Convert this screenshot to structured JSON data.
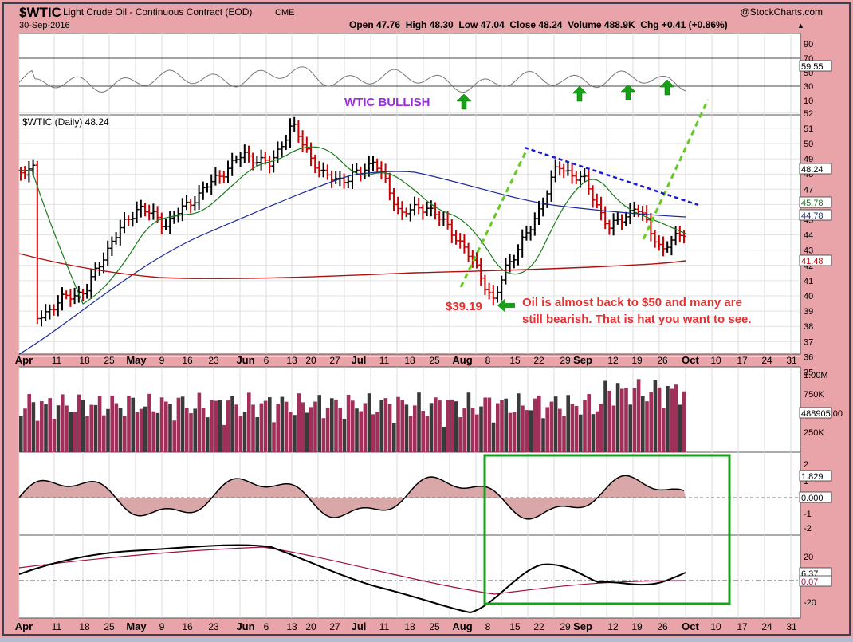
{
  "header": {
    "symbol": "$WTIC",
    "name": "Light Crude Oil - Continuous Contract (EOD)",
    "exchange": "CME",
    "date": "30-Sep-2016",
    "brand": "@StockCharts.com",
    "ohlc_line": "Open 47.76  High 48.30  Low 47.04  Close 48.24  Volume 488.9K  Chg +0.41 (+0.86%)",
    "up_arrow": "▲"
  },
  "annotations": {
    "bullish": "WTIC BULLISH",
    "low_price": "$39.19",
    "comment_line1": "Oil is almost back to $50 and many are",
    "comment_line2": "still bearish. That is hat you want to see."
  },
  "price_panel": {
    "legend": "$WTIC (Daily) 48.24",
    "y_ticks": [
      "52",
      "51",
      "50",
      "49",
      "48",
      "47",
      "46",
      "45",
      "44",
      "43",
      "42",
      "41",
      "40",
      "39",
      "38",
      "37",
      "36",
      "35"
    ],
    "value_tags": [
      "48.24",
      "45.78",
      "44.78",
      "41.48"
    ]
  },
  "rsi_panel": {
    "y_ticks": [
      "90",
      "70",
      "50",
      "30",
      "10"
    ],
    "value_tag": "59.55"
  },
  "volume_panel": {
    "y_ticks": [
      "1.00M",
      "750K",
      "250K"
    ],
    "value_tag": "488905.00"
  },
  "macd_hist_panel": {
    "y_ticks": [
      "2",
      "1",
      "0",
      "-1",
      "-2"
    ],
    "value_tags": [
      "1.829",
      "0.000"
    ]
  },
  "osc_panel": {
    "y_ticks": [
      "20",
      "-20"
    ],
    "value_tags": [
      "6.37",
      "0.07"
    ]
  },
  "x_axis": [
    "Apr",
    "11",
    "18",
    "25",
    "May",
    "9",
    "16",
    "23",
    "Jun",
    "6",
    "13",
    "20",
    "27",
    "Jul",
    "11",
    "18",
    "25",
    "Aug",
    "8",
    "15",
    "22",
    "29",
    "Sep",
    "12",
    "19",
    "26",
    "Oct",
    "10",
    "17",
    "24",
    "31"
  ],
  "colors": {
    "up_bar": "#000000",
    "down_bar": "#cc0000",
    "ma_short": "#1b7a1b",
    "ma_mid": "#1a2a9a",
    "ma_long": "#b01010",
    "trend_green": "#66cc22",
    "trend_blue": "#1a1ad0",
    "annotation_green": "#18a018",
    "highlight_box": "#18a018",
    "bullish_text": "#9a2ae0",
    "comment_text": "#e83030"
  },
  "chart_data": {
    "type": "bar",
    "title": "$WTIC Light Crude Oil - Continuous Contract (EOD)",
    "x_range": [
      "2016-04-01",
      "2016-09-30"
    ],
    "ylim": [
      35,
      52
    ],
    "price_points": [
      [
        "2016-04-01",
        38.3
      ],
      [
        "2016-04-08",
        39.7
      ],
      [
        "2016-04-15",
        40.4
      ],
      [
        "2016-04-22",
        43.7
      ],
      [
        "2016-04-29",
        45.9
      ],
      [
        "2016-05-06",
        44.7
      ],
      [
        "2016-05-13",
        46.2
      ],
      [
        "2016-05-20",
        47.8
      ],
      [
        "2016-05-27",
        49.3
      ],
      [
        "2016-06-03",
        48.6
      ],
      [
        "2016-06-09",
        51.2
      ],
      [
        "2016-06-17",
        47.9
      ],
      [
        "2016-06-24",
        47.6
      ],
      [
        "2016-07-01",
        48.9
      ],
      [
        "2016-07-08",
        45.4
      ],
      [
        "2016-07-15",
        45.9
      ],
      [
        "2016-07-22",
        44.2
      ],
      [
        "2016-07-29",
        41.6
      ],
      [
        "2016-08-02",
        39.5
      ],
      [
        "2016-08-05",
        41.8
      ],
      [
        "2016-08-12",
        44.5
      ],
      [
        "2016-08-19",
        48.5
      ],
      [
        "2016-08-26",
        47.6
      ],
      [
        "2016-09-02",
        44.4
      ],
      [
        "2016-09-09",
        45.9
      ],
      [
        "2016-09-16",
        43.0
      ],
      [
        "2016-09-23",
        44.5
      ],
      [
        "2016-09-30",
        48.24
      ]
    ],
    "annotations": {
      "low": 39.19,
      "last_close": 48.24
    },
    "series": [
      {
        "name": "$WTIC (Daily)",
        "last": 48.24
      },
      {
        "last": 45.78
      },
      {
        "last": 44.78
      },
      {
        "last": 41.48
      }
    ],
    "rsi_last": 59.55,
    "volume_last": 488905.0
  }
}
